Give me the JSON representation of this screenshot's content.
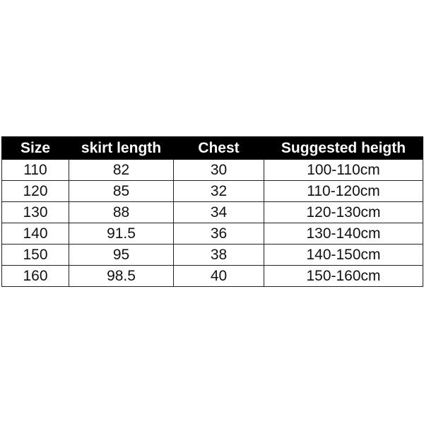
{
  "headers": [
    "Size",
    "skirt length",
    "Chest",
    "Suggested heigth"
  ],
  "rows": [
    [
      "110",
      "82",
      "30",
      "100-110cm"
    ],
    [
      "120",
      "85",
      "32",
      "110-120cm"
    ],
    [
      "130",
      "88",
      "34",
      "120-130cm"
    ],
    [
      "140",
      "91.5",
      "36",
      "130-140cm"
    ],
    [
      "150",
      "95",
      "38",
      "140-150cm"
    ],
    [
      "160",
      "98.5",
      "40",
      "150-160cm"
    ]
  ]
}
